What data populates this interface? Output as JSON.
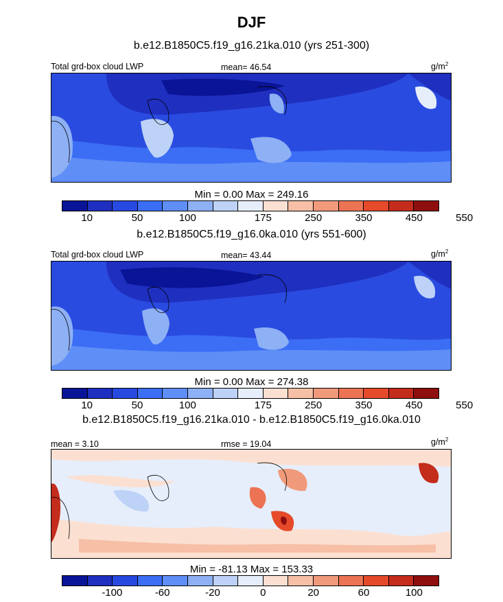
{
  "main_title": "DJF",
  "colors": {
    "abs_scale": [
      "#0a1496",
      "#1f2fbf",
      "#2849e0",
      "#3b6ef5",
      "#5f8ef7",
      "#8eb0f4",
      "#bdd2f6",
      "#e6eefb",
      "#fbe0d2",
      "#f6bfa6",
      "#f19a7b",
      "#ec7354",
      "#e54a2b",
      "#c42c1c",
      "#8f0e0e"
    ],
    "diff_scale": [
      "#0a1496",
      "#1f2fbf",
      "#2849e0",
      "#3b6ef5",
      "#5f8ef7",
      "#8eb0f4",
      "#bdd2f6",
      "#e6eefb",
      "#fbe0d2",
      "#f6bfa6",
      "#f19a7b",
      "#ec7354",
      "#e54a2b",
      "#c42c1c",
      "#8f0e0e"
    ]
  },
  "chart_data": [
    {
      "type": "heatmap",
      "title": "b.e12.B1850C5.f19_g16.21ka.010 (yrs 251-300)",
      "left_label": "Total grd-box cloud LWP",
      "center_label": "mean=  46.54",
      "units": "g/m²",
      "mean": 46.54,
      "minmax_text": "Min =   0.00 Max = 249.16",
      "min": 0.0,
      "max": 249.16,
      "colorbar_labels": [
        "10",
        "50",
        "100",
        "175",
        "250",
        "350",
        "450",
        "550"
      ],
      "colorbar_levels": [
        10,
        25,
        50,
        75,
        100,
        125,
        150,
        175,
        200,
        250,
        300,
        350,
        400,
        450,
        500,
        550
      ]
    },
    {
      "type": "heatmap",
      "title": "b.e12.B1850C5.f19_g16.0ka.010 (yrs 551-600)",
      "left_label": "Total grd-box cloud LWP",
      "center_label": "mean=  43.44",
      "units": "g/m²",
      "mean": 43.44,
      "minmax_text": "Min =   0.00 Max = 274.38",
      "min": 0.0,
      "max": 274.38,
      "colorbar_labels": [
        "10",
        "50",
        "100",
        "175",
        "250",
        "350",
        "450",
        "550"
      ],
      "colorbar_levels": [
        10,
        25,
        50,
        75,
        100,
        125,
        150,
        175,
        200,
        250,
        300,
        350,
        400,
        450,
        500,
        550
      ]
    },
    {
      "type": "heatmap",
      "title": "b.e12.B1850C5.f19_g16.21ka.010 - b.e12.B1850C5.f19_g16.0ka.010",
      "left_label": "mean =   3.10",
      "center_label": "rmse =  19.04",
      "units": "g/m²",
      "mean": 3.1,
      "rmse": 19.04,
      "minmax_text": "Min = -81.13 Max = 153.33",
      "min": -81.13,
      "max": 153.33,
      "colorbar_labels": [
        "-100",
        "-60",
        "-20",
        "0",
        "20",
        "60",
        "100"
      ],
      "colorbar_levels": [
        -120,
        -100,
        -80,
        -60,
        -40,
        -20,
        -10,
        0,
        10,
        20,
        40,
        60,
        80,
        100,
        120
      ]
    }
  ]
}
